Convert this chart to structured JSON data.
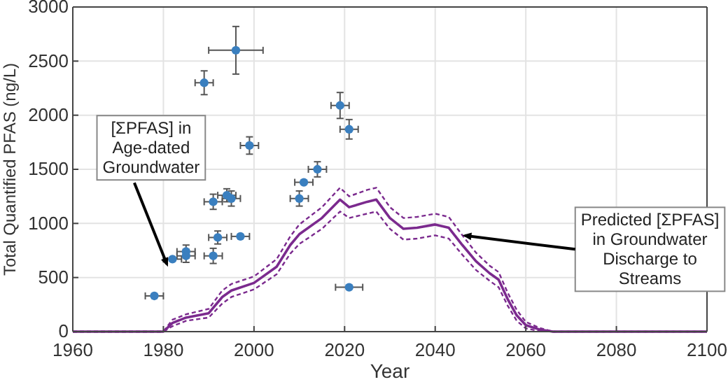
{
  "chart_data": {
    "type": "line",
    "xlabel": "Year",
    "ylabel": "Total Quantified PFAS (ng/L)",
    "xlim": [
      1960,
      2100
    ],
    "xticks": [
      1960,
      1980,
      2000,
      2020,
      2040,
      2060,
      2080,
      2100
    ],
    "ylim": [
      0,
      3000
    ],
    "yticks": [
      0,
      500,
      1000,
      1500,
      2000,
      2500,
      3000
    ],
    "grid": true,
    "series": [
      {
        "type": "scatter",
        "color": "#3a7fbf",
        "marker": "circle",
        "x": [
          1978,
          1982,
          1985,
          1985,
          1991,
          1991,
          1992,
          1994,
          1995,
          1997,
          1989,
          1996,
          1999,
          2010,
          2011,
          2014,
          2019,
          2021,
          2021
        ],
        "values": [
          330,
          670,
          740,
          700,
          700,
          1200,
          870,
          1260,
          1230,
          880,
          2300,
          2600,
          1720,
          1230,
          1380,
          1500,
          2090,
          1870,
          410
        ],
        "errors": [
          null,
          null,
          60,
          60,
          70,
          70,
          60,
          60,
          70,
          null,
          110,
          220,
          80,
          70,
          null,
          70,
          120,
          90,
          null
        ],
        "xerrors": [
          2,
          2,
          2,
          2,
          2,
          2,
          2,
          2,
          2,
          2,
          2,
          6,
          2,
          2,
          2,
          2,
          2,
          2,
          3
        ]
      },
      {
        "color": "#7b2a8e",
        "line_style": "solid",
        "marker": "none",
        "x": [
          1960,
          1980,
          1982,
          1985,
          1990,
          1993,
          1995,
          2000,
          2005,
          2008,
          2010,
          2015,
          2019,
          2021,
          2025,
          2027,
          2030,
          2033,
          2036,
          2040,
          2043,
          2046,
          2049,
          2052,
          2054,
          2056,
          2058,
          2060,
          2063,
          2066,
          2100
        ],
        "values": [
          0,
          0,
          80,
          130,
          170,
          320,
          380,
          450,
          600,
          800,
          900,
          1050,
          1220,
          1150,
          1200,
          1220,
          1050,
          950,
          960,
          990,
          960,
          800,
          650,
          540,
          480,
          300,
          150,
          60,
          20,
          0,
          0
        ]
      },
      {
        "color": "#7b2a8e",
        "line_style": "dashed",
        "marker": "none",
        "x": [
          1960,
          1980,
          1982,
          1985,
          1990,
          1993,
          1995,
          2000,
          2005,
          2008,
          2010,
          2015,
          2019,
          2021,
          2025,
          2027,
          2030,
          2033,
          2036,
          2040,
          2043,
          2046,
          2049,
          2052,
          2054,
          2056,
          2058,
          2060,
          2063,
          2066,
          2100
        ],
        "values": [
          0,
          0,
          110,
          160,
          210,
          380,
          440,
          510,
          670,
          880,
          990,
          1150,
          1330,
          1250,
          1310,
          1330,
          1150,
          1050,
          1060,
          1090,
          1060,
          890,
          730,
          610,
          550,
          360,
          200,
          90,
          35,
          0,
          0
        ]
      },
      {
        "color": "#7b2a8e",
        "line_style": "dashed",
        "marker": "none",
        "x": [
          1960,
          1980,
          1982,
          1985,
          1990,
          1993,
          1995,
          2000,
          2005,
          2008,
          2010,
          2015,
          2019,
          2021,
          2025,
          2027,
          2030,
          2033,
          2036,
          2040,
          2043,
          2046,
          2049,
          2052,
          2054,
          2056,
          2058,
          2060,
          2063,
          2066,
          2100
        ],
        "values": [
          0,
          0,
          50,
          100,
          130,
          260,
          320,
          390,
          530,
          720,
          810,
          950,
          1110,
          1050,
          1090,
          1110,
          950,
          850,
          860,
          890,
          860,
          710,
          570,
          470,
          410,
          240,
          100,
          30,
          5,
          0,
          0
        ]
      }
    ],
    "annotations": [
      {
        "text": "[ΣPFAS] in\nAge-dated\nGroundwater",
        "x": 1981,
        "y": 600
      },
      {
        "text": "Predicted [ΣPFAS]\nin Groundwater\nDischarge to\nStreams",
        "x": 2046,
        "y": 890
      }
    ]
  }
}
